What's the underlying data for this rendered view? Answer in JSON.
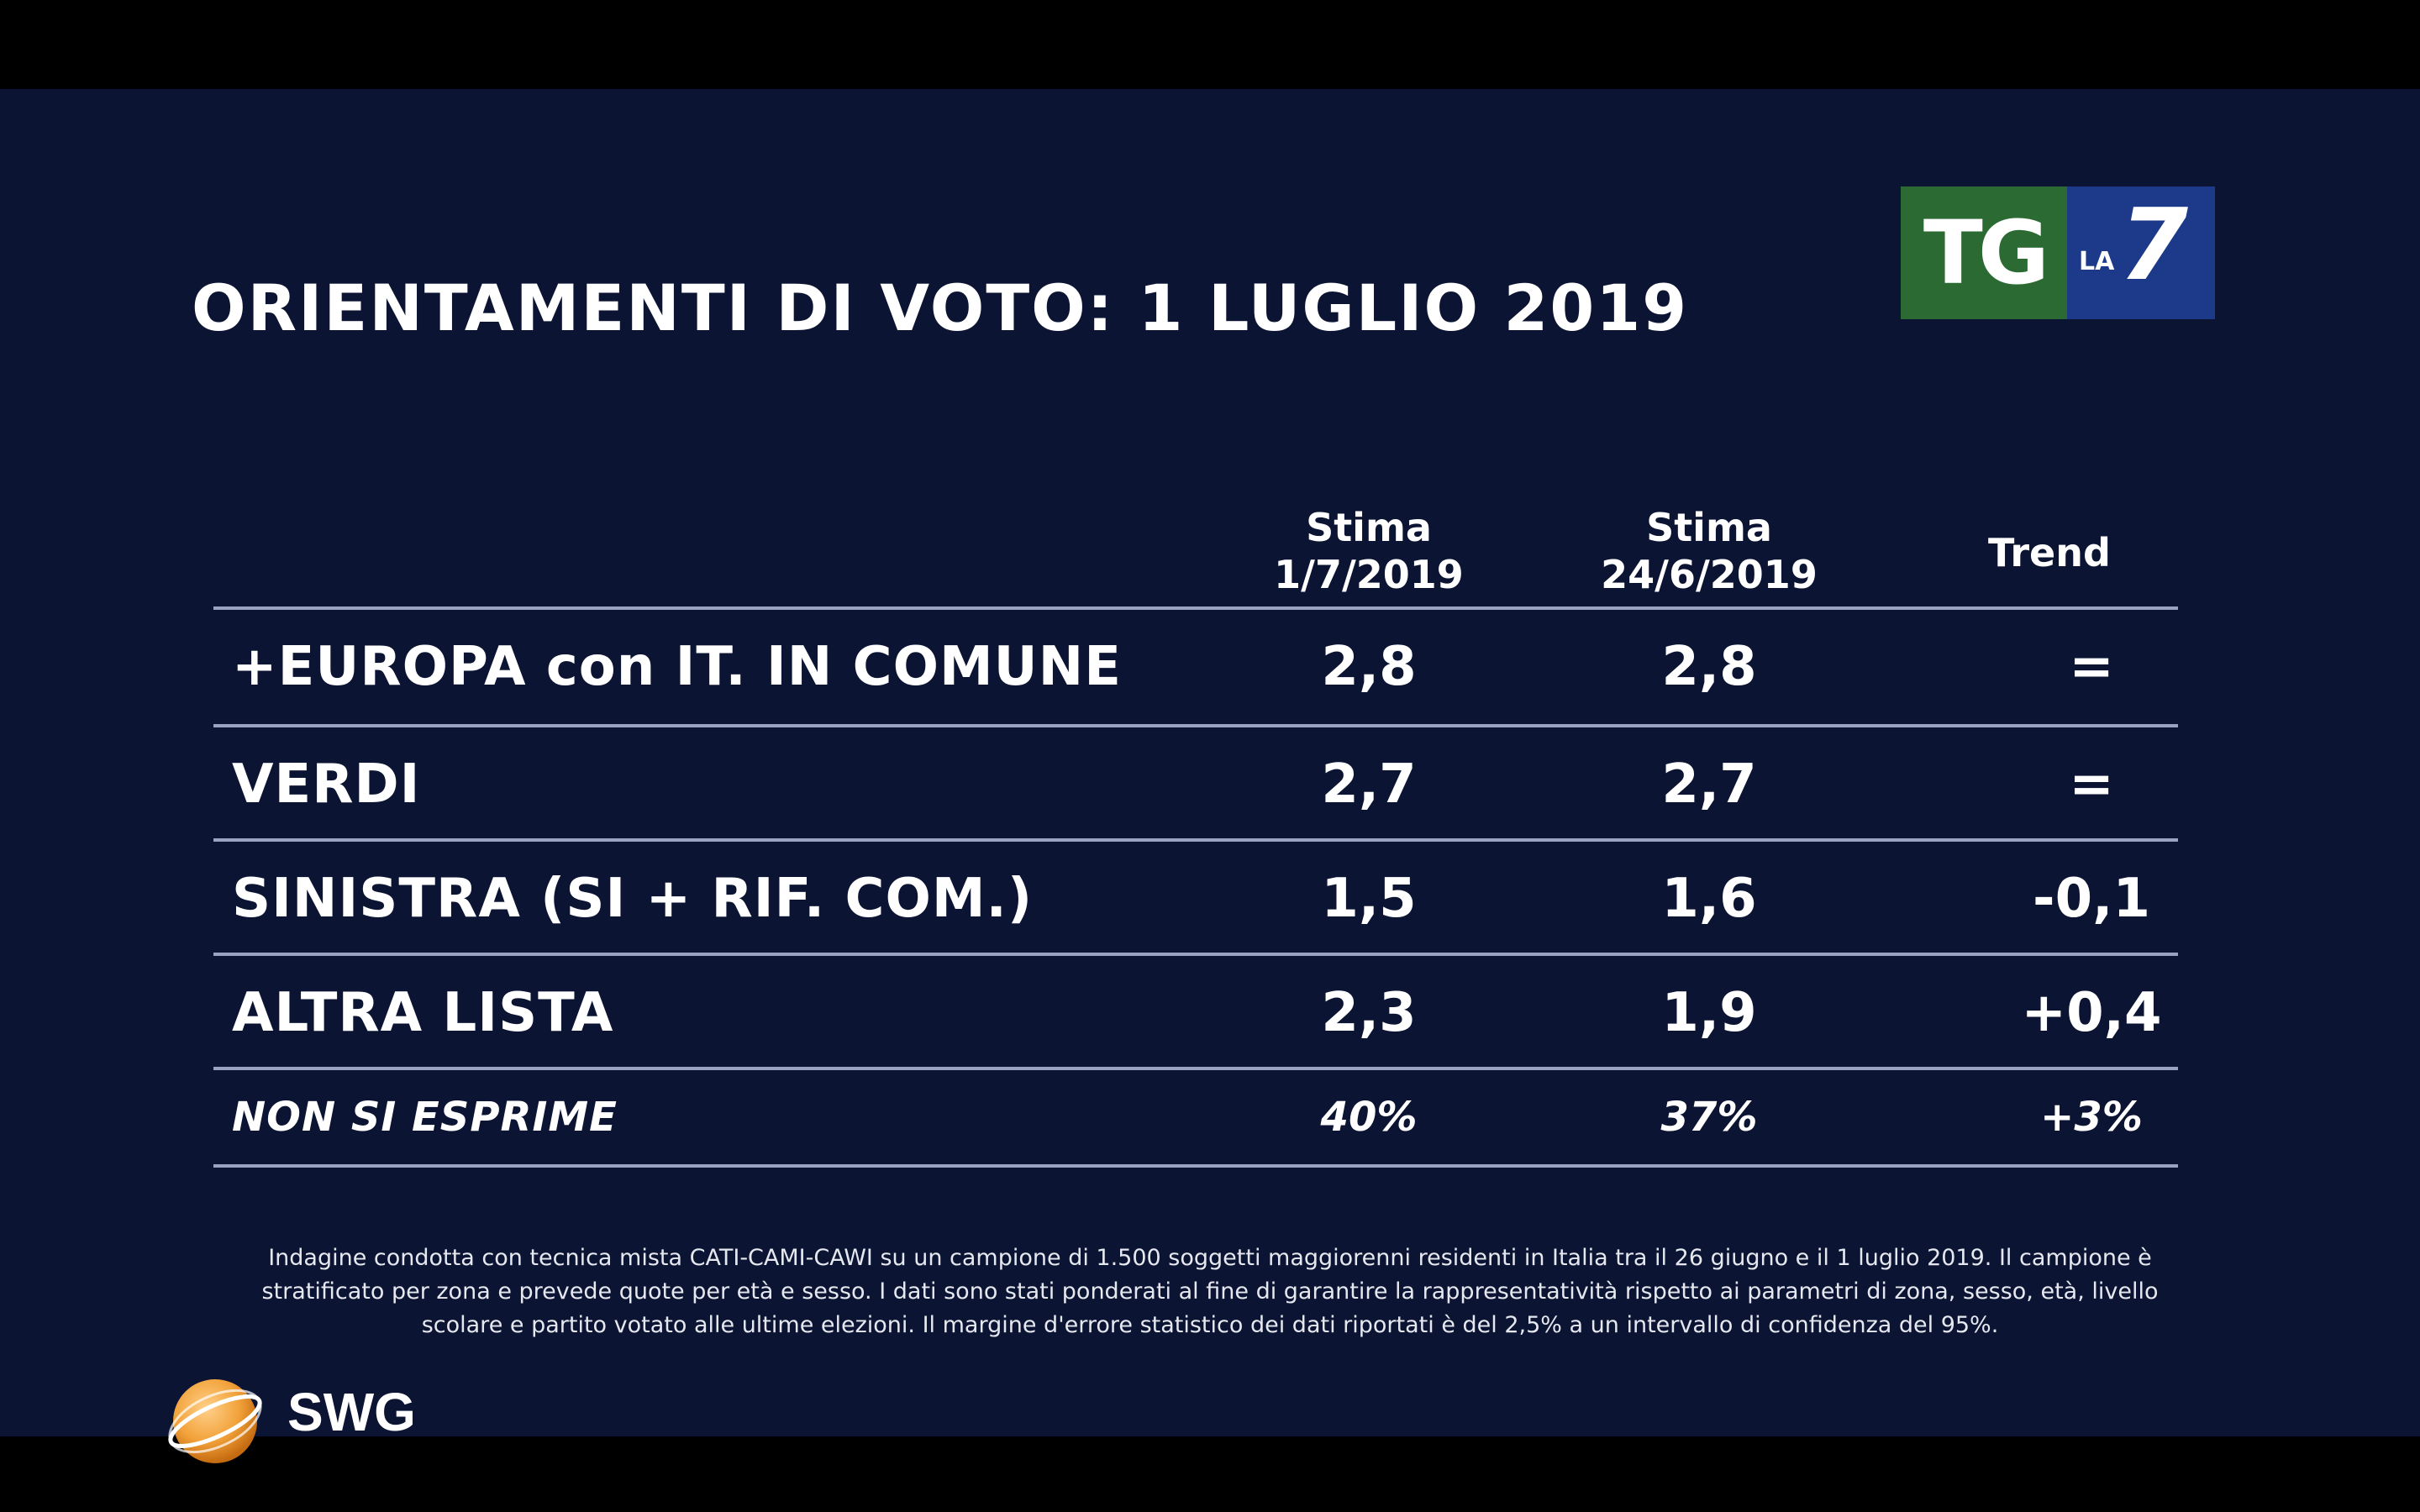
{
  "title": "ORIENTAMENTI DI VOTO: 1 LUGLIO 2019",
  "broadcaster_logo": {
    "tg": "TG",
    "la": "LA",
    "seven": "7",
    "colors": {
      "tg_bg": "#2b6a32",
      "la7_bg": "#1d3a8a"
    }
  },
  "table": {
    "columns": [
      {
        "line1": "Stima",
        "line2": "1/7/2019"
      },
      {
        "line1": "Stima",
        "line2": "24/6/2019"
      },
      {
        "line1": "Trend",
        "line2": ""
      }
    ],
    "rows": [
      {
        "party": "+EUROPA con IT. IN COMUNE",
        "v1": "2,8",
        "v2": "2,8",
        "trend": "="
      },
      {
        "party": "VERDI",
        "v1": "2,7",
        "v2": "2,7",
        "trend": "="
      },
      {
        "party": "SINISTRA (SI + RIF. COM.)",
        "v1": "1,5",
        "v2": "1,6",
        "trend": "-0,1"
      },
      {
        "party": "ALTRA LISTA",
        "v1": "2,3",
        "v2": "1,9",
        "trend": "+0,4"
      },
      {
        "party": "NON SI ESPRIME",
        "v1": "40%",
        "v2": "37%",
        "trend": "+3%"
      }
    ]
  },
  "footnote": {
    "line1": "Indagine condotta con tecnica mista CATI-CAMI-CAWI su un campione di 1.500 soggetti maggiorenni residenti in Italia tra il 26 giugno e il 1 luglio 2019. Il campione è",
    "line2": "stratificato per zona e prevede quote per età e sesso. I dati sono stati ponderati al fine di garantire la rappresentatività rispetto ai parametri di zona, sesso, età, livello",
    "line3": "scolare e partito votato alle ultime elezioni. Il margine d'errore statistico dei dati riportati è del 2,5% a un intervallo di confidenza del 95%."
  },
  "pollster_logo": {
    "text": "SWG",
    "colors": {
      "globe": "#f2a23a"
    }
  },
  "colors": {
    "background": "#0c1433",
    "rule": "#9aa3c2",
    "text": "#ffffff"
  }
}
